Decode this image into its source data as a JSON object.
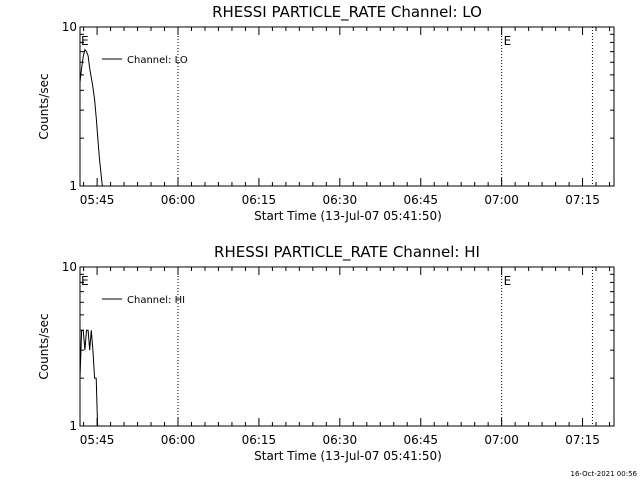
{
  "chart_data": [
    {
      "type": "line",
      "title": "RHESSI PARTICLE_RATE Channel: LO",
      "xlabel": "Start Time (13-Jul-07 05:41:50)",
      "ylabel": "Counts/sec",
      "yscale": "log",
      "ylim": [
        1,
        10
      ],
      "yticks": [
        "1",
        "10"
      ],
      "x_unit": "minutes since 05:41:50",
      "xlim": [
        0,
        99
      ],
      "xticks": [
        {
          "label": "05:45",
          "t": 3.17
        },
        {
          "label": "06:00",
          "t": 18.17
        },
        {
          "label": "06:15",
          "t": 33.17
        },
        {
          "label": "06:30",
          "t": 48.17
        },
        {
          "label": "06:45",
          "t": 63.17
        },
        {
          "label": "07:00",
          "t": 78.17
        },
        {
          "label": "07:15",
          "t": 93.17
        }
      ],
      "event_lines": [
        {
          "t": 18.17,
          "label": ""
        },
        {
          "t": 78.17,
          "label": "E"
        },
        {
          "t": 95.0,
          "label": ""
        }
      ],
      "start_marker": "E",
      "series": [
        {
          "name": "Channel: LO",
          "x": [
            0.0,
            0.3,
            0.6,
            0.9,
            1.2,
            1.5,
            1.8,
            2.1,
            2.4,
            2.7,
            3.0,
            3.3,
            3.6,
            4.0,
            4.3
          ],
          "y": [
            4.5,
            5.5,
            6.5,
            7.2,
            7.0,
            6.6,
            5.5,
            4.8,
            4.2,
            3.5,
            2.7,
            2.0,
            1.5,
            1.1,
            0.9
          ]
        }
      ],
      "legend": {
        "entries": [
          "Channel: LO"
        ],
        "placement": "top-left"
      }
    },
    {
      "type": "line",
      "title": "RHESSI PARTICLE_RATE Channel: HI",
      "xlabel": "Start Time (13-Jul-07 05:41:50)",
      "ylabel": "Counts/sec",
      "yscale": "log",
      "ylim": [
        1,
        10
      ],
      "yticks": [
        "1",
        "10"
      ],
      "x_unit": "minutes since 05:41:50",
      "xlim": [
        0,
        99
      ],
      "xticks": [
        {
          "label": "05:45",
          "t": 3.17
        },
        {
          "label": "06:00",
          "t": 18.17
        },
        {
          "label": "06:15",
          "t": 33.17
        },
        {
          "label": "06:30",
          "t": 48.17
        },
        {
          "label": "06:45",
          "t": 63.17
        },
        {
          "label": "07:00",
          "t": 78.17
        },
        {
          "label": "07:15",
          "t": 93.17
        }
      ],
      "event_lines": [
        {
          "t": 18.17,
          "label": ""
        },
        {
          "t": 78.17,
          "label": "E"
        },
        {
          "t": 95.0,
          "label": ""
        }
      ],
      "start_marker": "E",
      "series": [
        {
          "name": "Channel: HI",
          "x": [
            0.0,
            0.3,
            0.6,
            0.9,
            1.2,
            1.5,
            1.8,
            2.1,
            2.4,
            2.7,
            3.0,
            3.3
          ],
          "y": [
            2.0,
            4.0,
            4.0,
            3.0,
            4.0,
            4.0,
            3.0,
            4.0,
            3.0,
            2.0,
            2.0,
            0.9
          ]
        }
      ],
      "legend": {
        "entries": [
          "Channel: HI"
        ],
        "placement": "top-left"
      }
    }
  ],
  "timestamp": "16-Oct-2021 00:56"
}
